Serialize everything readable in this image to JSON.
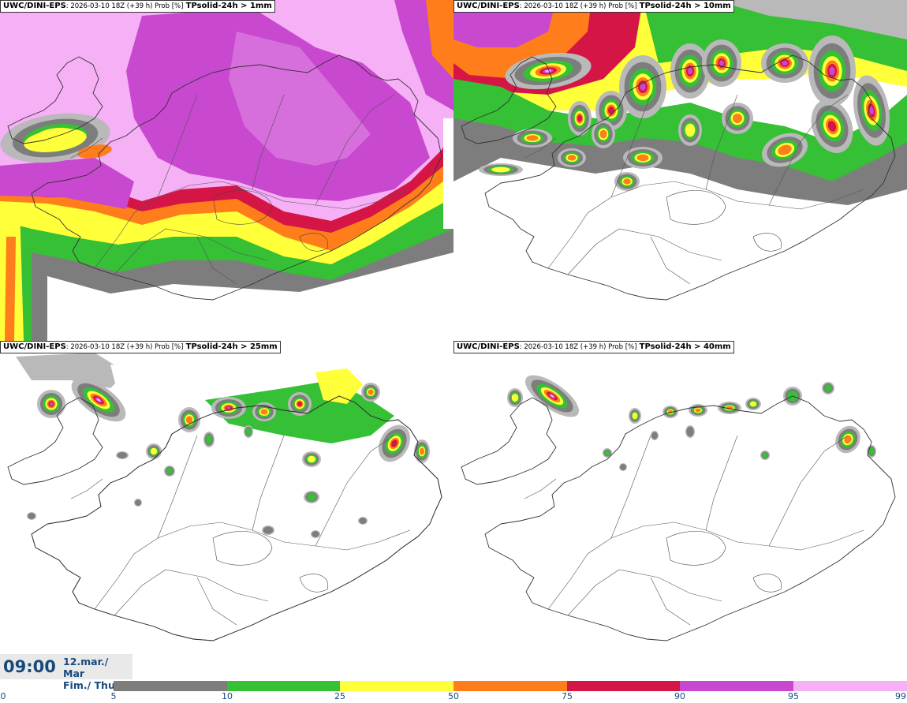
{
  "panels": [
    {
      "model": "UWC/DINI-EPS",
      "meta": ": 2026-03-10 18Z (+39 h) Prob [%]",
      "field": "TPsolid-24h > 1mm",
      "level": 4
    },
    {
      "model": "UWC/DINI-EPS",
      "meta": ": 2026-03-10 18Z (+39 h) Prob [%]",
      "field": "TPsolid-24h > 10mm",
      "level": 3
    },
    {
      "model": "UWC/DINI-EPS",
      "meta": ": 2026-03-10 18Z (+39 h) Prob [%]",
      "field": "TPsolid-24h > 25mm",
      "level": 2
    },
    {
      "model": "UWC/DINI-EPS",
      "meta": ": 2026-03-10 18Z (+39 h) Prob [%]",
      "field": "TPsolid-24h > 40mm",
      "level": 1
    }
  ],
  "time": {
    "clock": "09:00",
    "date_line1": "12.mar./ Mar",
    "date_line2": "Fim./ Thu"
  },
  "legend": {
    "ticks": [
      "0",
      "5",
      "10",
      "25",
      "50",
      "75",
      "90",
      "95",
      "99"
    ],
    "colors": [
      "#b9b9b9",
      "#7d7d7d",
      "#35c035",
      "#ffff3a",
      "#ff7d1a",
      "#d51545",
      "#c848d0",
      "#f6b0f6"
    ]
  }
}
